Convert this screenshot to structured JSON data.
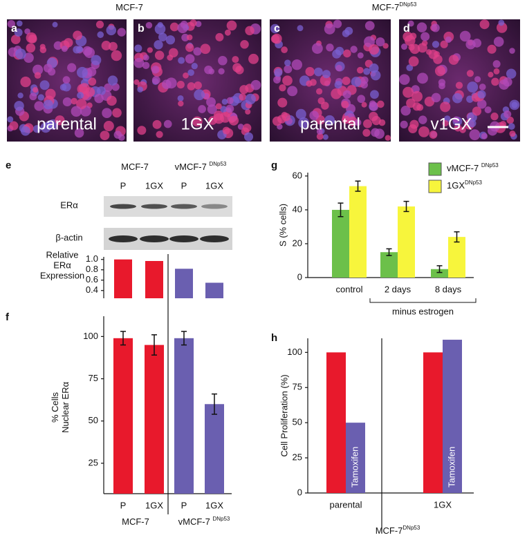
{
  "figure": {
    "micrographs": {
      "groups": [
        {
          "text": "MCF-7"
        },
        {
          "text": "MCF-7",
          "superscript": "DNp53"
        }
      ],
      "panels": [
        {
          "letter": "a",
          "label": "parental"
        },
        {
          "letter": "b",
          "label": "1GX"
        },
        {
          "letter": "c",
          "label": "parental"
        },
        {
          "letter": "d",
          "label": "v1GX"
        }
      ]
    },
    "blot": {
      "letter": "e",
      "groups": [
        {
          "text": "MCF-7"
        },
        {
          "text": "vMCF-7 ",
          "superscript": "DNp53"
        }
      ],
      "lanes": [
        "P",
        "1GX",
        "P",
        "1GX"
      ],
      "rows": [
        "ERα",
        "β-actin"
      ]
    }
  },
  "chart_data": [
    {
      "type": "bar",
      "ylabel": [
        "Relative",
        "ERα",
        "Expression"
      ],
      "categories": [
        null,
        null,
        null,
        null
      ],
      "values": [
        1.0,
        0.97,
        0.82,
        0.55
      ],
      "colors": [
        "#e8192c",
        "#e8192c",
        "#6a5fb0",
        "#6a5fb0"
      ],
      "ylim": [
        0.25,
        1.05
      ],
      "yticks": [
        {
          "value": 1.0,
          "label": "1.0"
        },
        0.8,
        0.6,
        0.4
      ]
    },
    {
      "type": "bar",
      "letter": "f",
      "ylabel": [
        "% Cells",
        "Nuclear ERα"
      ],
      "categories": [
        "P",
        "1GX",
        "P",
        "1GX"
      ],
      "values": [
        99,
        95,
        99,
        60
      ],
      "errors": [
        4,
        6,
        4,
        6
      ],
      "colors": [
        "#e8192c",
        "#e8192c",
        "#6a5fb0",
        "#6a5fb0"
      ],
      "groups": [
        {
          "text": "MCF-7"
        },
        {
          "text": "vMCF-7 ",
          "superscript": "DNp53"
        }
      ],
      "ylim": [
        7,
        112
      ],
      "yticks": [
        25,
        50,
        75,
        100
      ]
    },
    {
      "type": "bar",
      "letter": "g",
      "ylabel": [
        "S (% cells)"
      ],
      "categories": [
        "control",
        "2 days",
        "8 days"
      ],
      "series": [
        {
          "name": "vMCF-7 ",
          "name_superscript": "DNp53",
          "color": "#6cc04a",
          "values": [
            40,
            15,
            5
          ],
          "errors": [
            4,
            2,
            2
          ]
        },
        {
          "name": "1GX",
          "name_superscript": "DNp53",
          "color": "#f7f53c",
          "values": [
            54,
            42,
            24
          ],
          "errors": [
            3,
            3,
            3
          ]
        }
      ],
      "annotation": "minus estrogen",
      "ylim": [
        0,
        62
      ],
      "yticks": [
        0,
        20,
        40,
        60
      ],
      "legend": "top-right"
    },
    {
      "type": "bar",
      "letter": "h",
      "ylabel": [
        "Cell Proliferation (%)"
      ],
      "categories": [
        "parental",
        "1GX"
      ],
      "series": [
        {
          "color": "#e8192c",
          "values": [
            100,
            100
          ]
        },
        {
          "color": "#6a5fb0",
          "values": [
            50,
            109
          ],
          "bar_labels": [
            "Tamoxifen",
            "Tamoxifen"
          ]
        }
      ],
      "caption": {
        "text": "MCF-7",
        "superscript": "DNp53"
      },
      "ylim": [
        0,
        110
      ],
      "yticks": [
        0,
        25,
        50,
        75,
        100
      ]
    }
  ]
}
